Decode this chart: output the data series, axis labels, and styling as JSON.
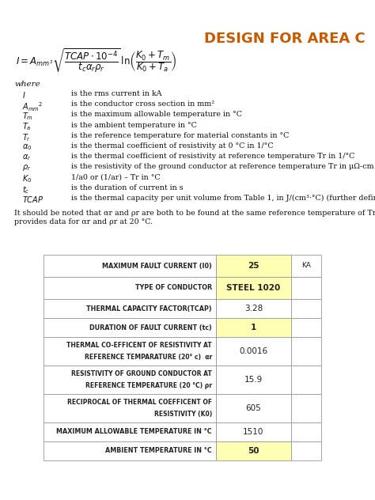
{
  "title": "DESIGN FOR AREA C",
  "title_color": "#C85A00",
  "bg_color": "#ffffff",
  "variables": [
    [
      "I",
      "is the rms current in kA"
    ],
    [
      "Amm2",
      "is the conductor cross section in mm²"
    ],
    [
      "Tm",
      "is the maximum allowable temperature in °C"
    ],
    [
      "Ta",
      "is the ambient temperature in °C"
    ],
    [
      "Tr",
      "is the reference temperature for material constants in °C"
    ],
    [
      "a0",
      "is the thermal coefficient of resistivity at 0 °C in 1/°C"
    ],
    [
      "ar",
      "is the thermal coefficient of resistivity at reference temperature Tr in 1/°C"
    ],
    [
      "pr",
      "is the resistivity of the ground conductor at reference temperature Tr in μΩ-cm"
    ],
    [
      "K0",
      "1/a0 or (1/ar) – Tr in °C"
    ],
    [
      "tc",
      "is the duration of current in s"
    ],
    [
      "TCAP",
      "is the thermal capacity per unit volume from Table 1, in J/(cm³·°C) (further defined in"
    ]
  ],
  "note1": "It should be noted that αr and ρr are both to be found at the same reference temperature of Tr °C",
  "note2": "provides data for αr and ρr at 20 °C.",
  "table_rows": [
    {
      "label": "MAXIMUM FAULT CURRENT (I0)",
      "value": "25",
      "unit": "KA",
      "value_bg": "#ffffb3",
      "bold_value": true
    },
    {
      "label": "TYPE OF CONDUCTOR",
      "value": "STEEL 1020",
      "unit": "",
      "value_bg": "#ffffb3",
      "bold_value": true
    },
    {
      "label": "THERMAL CAPACITY FACTOR(TCAP)",
      "value": "3.28",
      "unit": "",
      "value_bg": "#ffffff",
      "bold_value": false
    },
    {
      "label": "DURATION OF FAULT CURRENT (tc)",
      "value": "1",
      "unit": "",
      "value_bg": "#ffffb3",
      "bold_value": true
    },
    {
      "label": "THERMAL CO-EFFICENT OF RESISTIVITY AT\nREFERENCE TEMPARATURE (20° c)  αr",
      "value": "0.0016",
      "unit": "",
      "value_bg": "#ffffff",
      "bold_value": false
    },
    {
      "label": "RESISTIVITY OF GROUND CONDUCTOR AT\nREFERENCE TEMPERATURE (20 °C) ρr",
      "value": "15.9",
      "unit": "",
      "value_bg": "#ffffff",
      "bold_value": false
    },
    {
      "label": "RECIPROCAL OF THERMAL COEFFICENT OF\nRESISTIVITY (K0)",
      "value": "605",
      "unit": "",
      "value_bg": "#ffffff",
      "bold_value": false
    },
    {
      "label": "MAXIMUM ALLOWABLE TEMPERATURE IN °C",
      "value": "1510",
      "unit": "",
      "value_bg": "#ffffff",
      "bold_value": false
    },
    {
      "label": "AMBIENT TEMPERATURE IN °C",
      "value": "50",
      "unit": "",
      "value_bg": "#ffffb3",
      "bold_value": true
    }
  ]
}
